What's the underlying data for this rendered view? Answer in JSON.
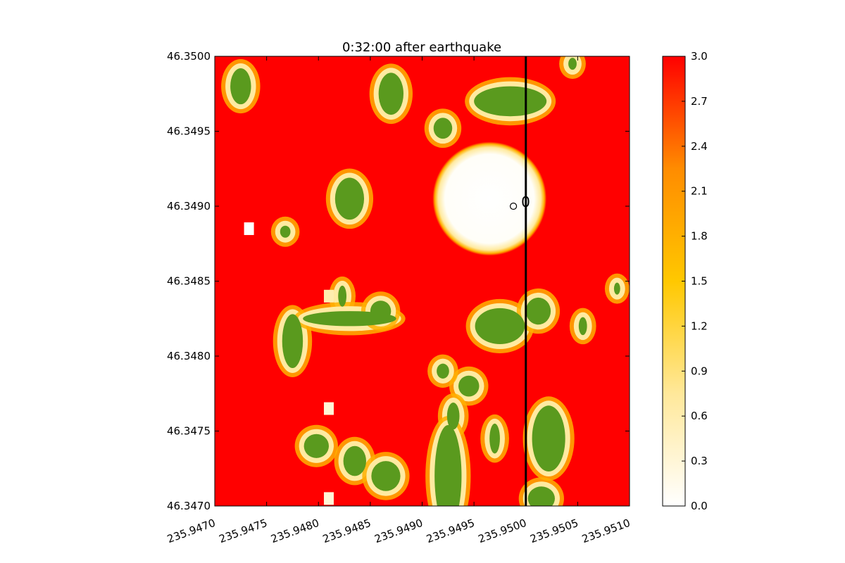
{
  "chart_data": {
    "type": "heatmap",
    "title": "0:32:00 after earthquake",
    "xlim": [
      235.947,
      235.951
    ],
    "ylim": [
      46.347,
      46.35
    ],
    "x_ticks": [
      "235.9470",
      "235.9475",
      "235.9480",
      "235.9485",
      "235.9490",
      "235.9495",
      "235.9500",
      "235.9505",
      "235.9510"
    ],
    "y_ticks": [
      "46.3470",
      "46.3475",
      "46.3480",
      "46.3485",
      "46.3490",
      "46.3495",
      "46.3500"
    ],
    "colorbar": {
      "range": [
        0.0,
        3.0
      ],
      "ticks": [
        "0.0",
        "0.3",
        "0.6",
        "0.9",
        "1.2",
        "1.5",
        "1.8",
        "2.1",
        "2.4",
        "2.7",
        "3.0"
      ],
      "colormap": [
        "#ffffff",
        "#ffe89a",
        "#ffc800",
        "#ff8c00",
        "#ff0000"
      ]
    },
    "background_value": 3.0,
    "land_color": "#5a9a1e",
    "dry_features": [
      {
        "x": 235.94725,
        "y": 46.3498,
        "rx": 0.0001,
        "ry": 0.00012
      },
      {
        "x": 235.9483,
        "y": 46.34905,
        "rx": 0.00014,
        "ry": 0.00014
      },
      {
        "x": 235.9487,
        "y": 46.34975,
        "rx": 0.00012,
        "ry": 0.00014
      },
      {
        "x": 235.9492,
        "y": 46.34952,
        "rx": 9e-05,
        "ry": 7e-05
      },
      {
        "x": 235.94985,
        "y": 46.3497,
        "rx": 0.00035,
        "ry": 0.0001
      },
      {
        "x": 235.95045,
        "y": 46.34995,
        "rx": 4e-05,
        "ry": 4e-05
      },
      {
        "x": 235.94768,
        "y": 46.34883,
        "rx": 5e-05,
        "ry": 4e-05
      },
      {
        "x": 235.94823,
        "y": 46.3484,
        "rx": 4e-05,
        "ry": 7e-05
      },
      {
        "x": 235.94775,
        "y": 46.3481,
        "rx": 0.0001,
        "ry": 0.00018
      },
      {
        "x": 235.9483,
        "y": 46.34825,
        "rx": 0.00045,
        "ry": 5e-05
      },
      {
        "x": 235.9486,
        "y": 46.3483,
        "rx": 0.0001,
        "ry": 7e-05
      },
      {
        "x": 235.94975,
        "y": 46.3482,
        "rx": 0.00024,
        "ry": 0.00012
      },
      {
        "x": 235.95012,
        "y": 46.3483,
        "rx": 0.00012,
        "ry": 9e-05
      },
      {
        "x": 235.94945,
        "y": 46.3478,
        "rx": 0.0001,
        "ry": 7e-05
      },
      {
        "x": 235.9492,
        "y": 46.3479,
        "rx": 6e-05,
        "ry": 5e-05
      },
      {
        "x": 235.9493,
        "y": 46.3476,
        "rx": 6e-05,
        "ry": 9e-05
      },
      {
        "x": 235.94925,
        "y": 46.3472,
        "rx": 0.00013,
        "ry": 0.00034
      },
      {
        "x": 235.9497,
        "y": 46.34745,
        "rx": 5e-05,
        "ry": 0.0001
      },
      {
        "x": 235.95022,
        "y": 46.34745,
        "rx": 0.00016,
        "ry": 0.00022
      },
      {
        "x": 235.95015,
        "y": 46.34705,
        "rx": 0.00013,
        "ry": 8e-05
      },
      {
        "x": 235.94798,
        "y": 46.3474,
        "rx": 0.00012,
        "ry": 8e-05
      },
      {
        "x": 235.94835,
        "y": 46.3473,
        "rx": 0.00011,
        "ry": 0.0001
      },
      {
        "x": 235.94865,
        "y": 46.3472,
        "rx": 0.00014,
        "ry": 0.0001
      },
      {
        "x": 235.95055,
        "y": 46.3482,
        "rx": 4e-05,
        "ry": 6e-05
      },
      {
        "x": 235.95088,
        "y": 46.34845,
        "rx": 3e-05,
        "ry": 4e-05
      }
    ],
    "high_spots": [
      {
        "x": 235.94733,
        "y": 46.34885,
        "value": 0.0
      },
      {
        "x": 235.9481,
        "y": 46.3484,
        "value": 0.6
      },
      {
        "x": 235.9481,
        "y": 46.34765,
        "value": 0.3
      },
      {
        "x": 235.9481,
        "y": 46.34705,
        "value": 0.3
      }
    ],
    "source_circle": {
      "x": 235.94965,
      "y": 46.34905,
      "r": 0.00055
    },
    "marker": {
      "x": 235.94988,
      "y": 46.349,
      "label": "0"
    },
    "vertical_line_x": 235.95
  }
}
